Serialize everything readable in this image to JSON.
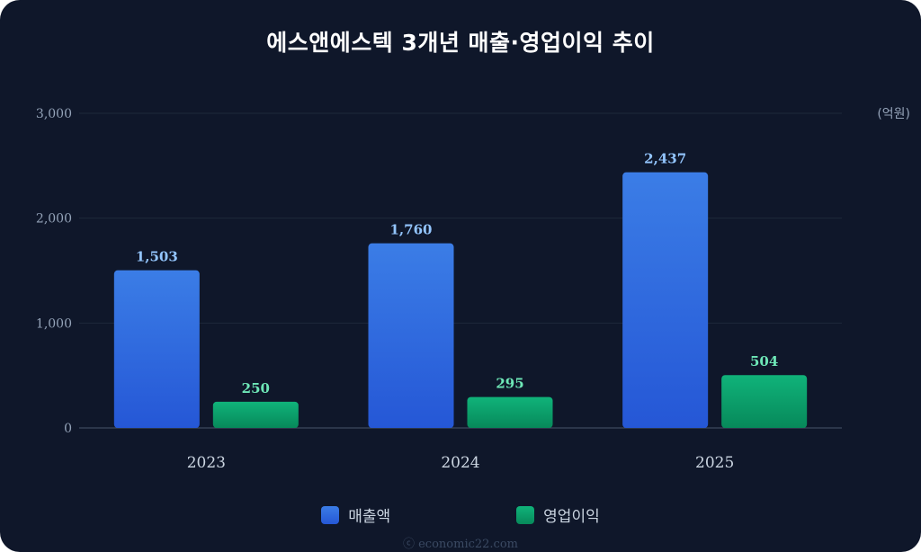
{
  "chart_data": {
    "type": "bar",
    "title": "에스앤에스텍 3개년 매출·영업이익 추이",
    "unit": "(억원)",
    "categories": [
      "2023",
      "2024",
      "2025"
    ],
    "series": [
      {
        "name": "매출액",
        "values": [
          1503,
          1760,
          2437
        ],
        "value_labels": [
          "1,503",
          "1,760",
          "2,437"
        ],
        "color": "#3b82f6",
        "label_color": "#93c5fd"
      },
      {
        "name": "영업이익",
        "values": [
          250,
          295,
          504
        ],
        "value_labels": [
          "250",
          "295",
          "504"
        ],
        "color": "#10b981",
        "label_color": "#6ee7b7"
      }
    ],
    "ylim": [
      0,
      3000
    ],
    "yticks": [
      0,
      1000,
      2000,
      3000
    ],
    "ytick_labels": [
      "0",
      "1,000",
      "2,000",
      "3,000"
    ],
    "grid": true,
    "legend": "bottom-center"
  },
  "watermark": "ⓒ economic22.com"
}
